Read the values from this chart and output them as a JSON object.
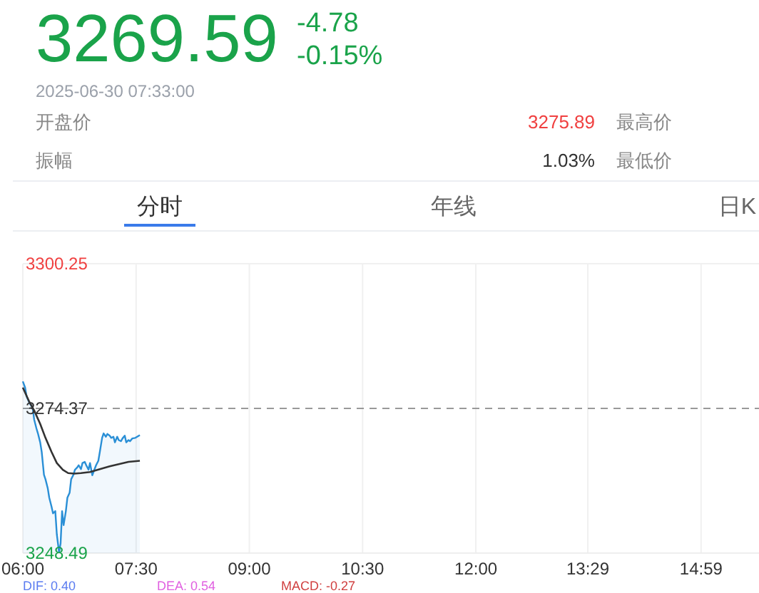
{
  "chart_data": {
    "type": "line",
    "title": "3269.59",
    "annotations": [
      "-4.78",
      "-0.15%",
      "2025-06-30   07:33:00",
      "开盘价",
      "3275.89",
      "最高价",
      "振幅",
      "1.03%",
      "最低价",
      "分时",
      "年线",
      "日K",
      "DIF: 0.40",
      "DEA: 0.54",
      "MACD: -0.27"
    ],
    "xlim": [
      6,
      15.75
    ],
    "xticks": [
      {
        "value": 6,
        "label": "06:00"
      },
      {
        "value": 7.5,
        "label": "07:30"
      },
      {
        "value": 9,
        "label": "09:00"
      },
      {
        "value": 10.5,
        "label": "10:30"
      },
      {
        "value": 12,
        "label": "12:00"
      },
      {
        "value": 13.483,
        "label": "13:29"
      },
      {
        "value": 14.983,
        "label": "14:59"
      }
    ],
    "ylim": [
      3248.49,
      3300.25
    ],
    "yticks": [
      3248.49,
      3274.37,
      3300.25
    ],
    "grid": "x",
    "ref_lines": [
      {
        "axis": "y",
        "value": 3274.37,
        "line_style": "dashed",
        "color": "#999999"
      }
    ],
    "series": [
      {
        "type": "area",
        "color": "#2a8fd6",
        "x": [
          6.0,
          6.03,
          6.05,
          6.09,
          6.13,
          6.15,
          6.18,
          6.2,
          6.23,
          6.25,
          6.28,
          6.3,
          6.33,
          6.35,
          6.38,
          6.4,
          6.43,
          6.45,
          6.48,
          6.5,
          6.52,
          6.54,
          6.57,
          6.59,
          6.62,
          6.64,
          6.67,
          6.69,
          6.72,
          6.74,
          6.77,
          6.79,
          6.82,
          6.84,
          6.87,
          6.89,
          6.92,
          6.95,
          6.97,
          7.0,
          7.02,
          7.05,
          7.07,
          7.1,
          7.12,
          7.15,
          7.17,
          7.2,
          7.22,
          7.25,
          7.27,
          7.3,
          7.32,
          7.35,
          7.37,
          7.4,
          7.42,
          7.45,
          7.49,
          7.55
        ],
        "values": [
          3279.2,
          3278.1,
          3276.5,
          3275.3,
          3274.5,
          3272.4,
          3270.8,
          3269.9,
          3268.3,
          3266.6,
          3262.5,
          3261.7,
          3260.1,
          3258.4,
          3256.8,
          3255.6,
          3256.0,
          3251.9,
          3248.6,
          3250.2,
          3256.0,
          3253.5,
          3256.0,
          3258.4,
          3259.3,
          3261.7,
          3262.5,
          3263.4,
          3263.8,
          3264.2,
          3263.5,
          3264.6,
          3264.8,
          3264.2,
          3263.4,
          3264.6,
          3262.4,
          3263.5,
          3264.2,
          3265.0,
          3266.6,
          3269.1,
          3269.9,
          3269.3,
          3269.8,
          3269.5,
          3269.1,
          3269.3,
          3268.3,
          3269.3,
          3268.7,
          3268.5,
          3269.0,
          3269.5,
          3268.3,
          3268.7,
          3268.5,
          3269.0,
          3269.1,
          3269.6
        ]
      },
      {
        "color": "#333333",
        "x": [
          6.0,
          6.08,
          6.15,
          6.23,
          6.3,
          6.38,
          6.45,
          6.53,
          6.6,
          6.68,
          6.77,
          6.89,
          7.02,
          7.15,
          7.27,
          7.4,
          7.55
        ],
        "values": [
          3278.1,
          3275.7,
          3274.0,
          3271.6,
          3269.1,
          3266.6,
          3264.6,
          3263.4,
          3262.8,
          3262.7,
          3262.8,
          3263.0,
          3263.5,
          3264.0,
          3264.4,
          3264.8,
          3265.0
        ]
      }
    ]
  }
}
